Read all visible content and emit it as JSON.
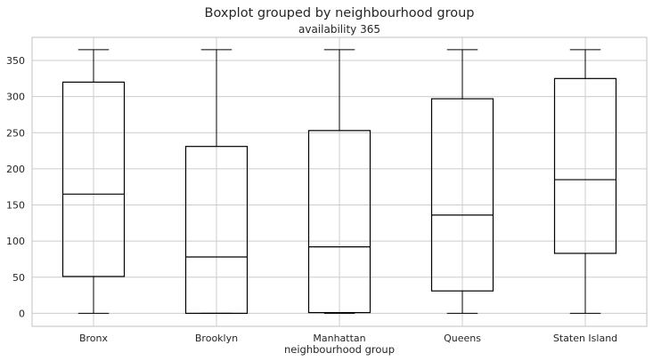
{
  "chart_data": {
    "type": "box",
    "title": "Boxplot grouped by neighbourhood group",
    "subtitle": "availability 365",
    "xlabel": "neighbourhood group",
    "ylabel": "",
    "ylim": [
      -18,
      382
    ],
    "yticks": [
      0,
      50,
      100,
      150,
      200,
      250,
      300,
      350
    ],
    "grid": true,
    "categories": [
      "Bronx",
      "Brooklyn",
      "Manhattan",
      "Queens",
      "Staten Island"
    ],
    "boxes": [
      {
        "category": "Bronx",
        "whisker_low": 0,
        "q1": 51,
        "median": 165,
        "q3": 320,
        "whisker_high": 365
      },
      {
        "category": "Brooklyn",
        "whisker_low": 0,
        "q1": 0,
        "median": 78,
        "q3": 231,
        "whisker_high": 365
      },
      {
        "category": "Manhattan",
        "whisker_low": 0,
        "q1": 1,
        "median": 92,
        "q3": 253,
        "whisker_high": 365
      },
      {
        "category": "Queens",
        "whisker_low": 0,
        "q1": 31,
        "median": 136,
        "q3": 297,
        "whisker_high": 365
      },
      {
        "category": "Staten Island",
        "whisker_low": 0,
        "q1": 83,
        "median": 185,
        "q3": 325,
        "whisker_high": 365
      }
    ],
    "colors": {
      "box": "#000000",
      "grid": "#cccccc",
      "spine": "#cccccc"
    }
  }
}
